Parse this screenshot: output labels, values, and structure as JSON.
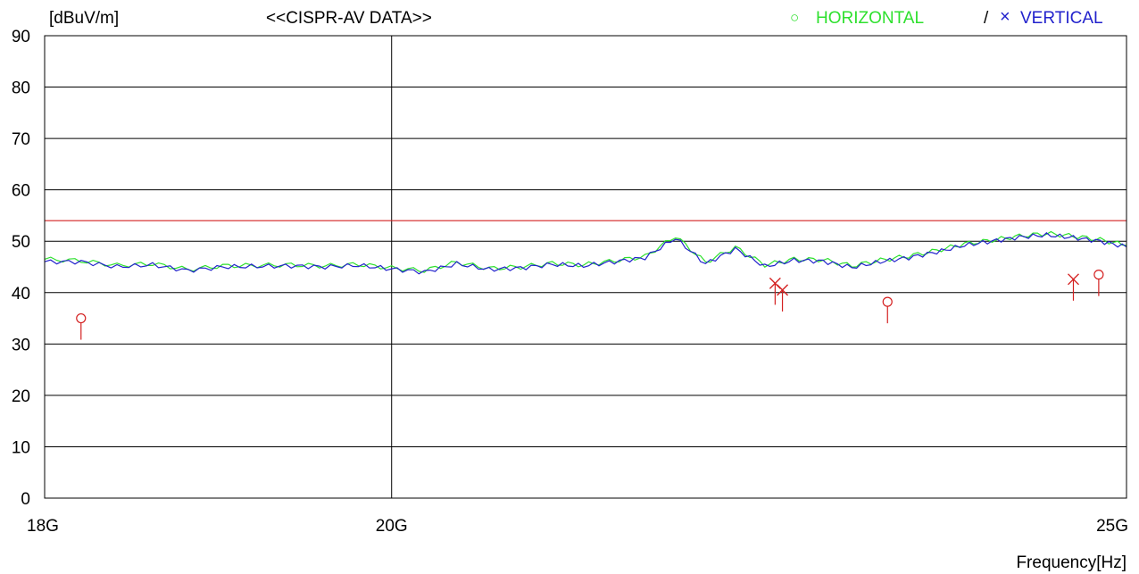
{
  "chart_data": {
    "type": "line",
    "title": "<<CISPR-AV DATA>>",
    "ylabel": "[dBuV/m]",
    "xlabel": "Frequency[Hz]",
    "x_scale": "log",
    "xlim": [
      18000000000,
      25000000000
    ],
    "ylim": [
      0,
      90
    ],
    "y_ticks": [
      "0",
      "10",
      "20",
      "30",
      "40",
      "50",
      "60",
      "70",
      "80",
      "90"
    ],
    "x_ticks": [
      {
        "label": "18G",
        "value": 18000000000
      },
      {
        "label": "20G",
        "value": 20000000000
      },
      {
        "label": "25G",
        "value": 25000000000
      }
    ],
    "grid": true,
    "legend": {
      "position": "top-right",
      "entries": [
        {
          "symbol": "○",
          "label": "HORIZONTAL",
          "color": "#2ee02e"
        },
        {
          "separator": "/"
        },
        {
          "symbol": "×",
          "label": "VERTICAL",
          "color": "#2222cc"
        }
      ]
    },
    "limit_line": {
      "value": 54,
      "color": "#d42020"
    },
    "series": [
      {
        "name": "HORIZONTAL",
        "color": "#2ee02e",
        "x": [
          18000000000,
          18200000000,
          18400000000,
          18600000000,
          18800000000,
          19000000000,
          19200000000,
          19400000000,
          19600000000,
          19800000000,
          20000000000,
          20200000000,
          20400000000,
          20600000000,
          20800000000,
          21000000000,
          21200000000,
          21400000000,
          21600000000,
          21800000000,
          22000000000,
          22200000000,
          22400000000,
          22600000000,
          22800000000,
          23000000000,
          23200000000,
          23400000000,
          23600000000,
          23800000000,
          24000000000,
          24200000000,
          24400000000,
          24600000000,
          24800000000,
          25000000000
        ],
        "values": [
          46.5,
          46.2,
          45.3,
          45.6,
          44.5,
          45.2,
          45.3,
          45.4,
          45.2,
          45.5,
          44.8,
          44.3,
          45.9,
          44.7,
          45.0,
          45.7,
          45.4,
          46.2,
          47.0,
          51.0,
          45.9,
          48.8,
          45.4,
          46.5,
          46.4,
          45.2,
          46.3,
          47.1,
          48.2,
          49.5,
          50.2,
          51.0,
          51.5,
          51.0,
          50.3,
          49.2
        ]
      },
      {
        "name": "VERTICAL",
        "color": "#2222cc",
        "x": [
          18000000000,
          18200000000,
          18400000000,
          18600000000,
          18800000000,
          19000000000,
          19200000000,
          19400000000,
          19600000000,
          19800000000,
          20000000000,
          20200000000,
          20400000000,
          20600000000,
          20800000000,
          21000000000,
          21200000000,
          21400000000,
          21600000000,
          21800000000,
          22000000000,
          22200000000,
          22400000000,
          22600000000,
          22800000000,
          23000000000,
          23200000000,
          23400000000,
          23600000000,
          23800000000,
          24000000000,
          24200000000,
          24400000000,
          24600000000,
          24800000000,
          25000000000
        ],
        "values": [
          46.0,
          46.0,
          45.0,
          45.4,
          44.3,
          45.0,
          45.1,
          45.2,
          45.0,
          45.3,
          44.6,
          44.0,
          45.6,
          44.5,
          44.8,
          45.5,
          45.2,
          46.0,
          46.8,
          50.6,
          45.6,
          48.5,
          45.1,
          46.3,
          46.1,
          44.9,
          46.0,
          46.8,
          47.9,
          49.2,
          50.0,
          50.8,
          51.2,
          50.7,
          50.0,
          48.9
        ]
      }
    ],
    "peak_markers": [
      {
        "x": 18200000000,
        "y": 35.0,
        "type": "o",
        "color": "#d42020"
      },
      {
        "x": 22470000000,
        "y": 41.8,
        "type": "x",
        "color": "#d42020"
      },
      {
        "x": 22520000000,
        "y": 40.5,
        "type": "x",
        "color": "#d42020"
      },
      {
        "x": 23250000000,
        "y": 38.2,
        "type": "o",
        "color": "#d42020"
      },
      {
        "x": 24600000000,
        "y": 42.6,
        "type": "x",
        "color": "#d42020"
      },
      {
        "x": 24790000000,
        "y": 43.5,
        "type": "o",
        "color": "#d42020"
      }
    ]
  }
}
